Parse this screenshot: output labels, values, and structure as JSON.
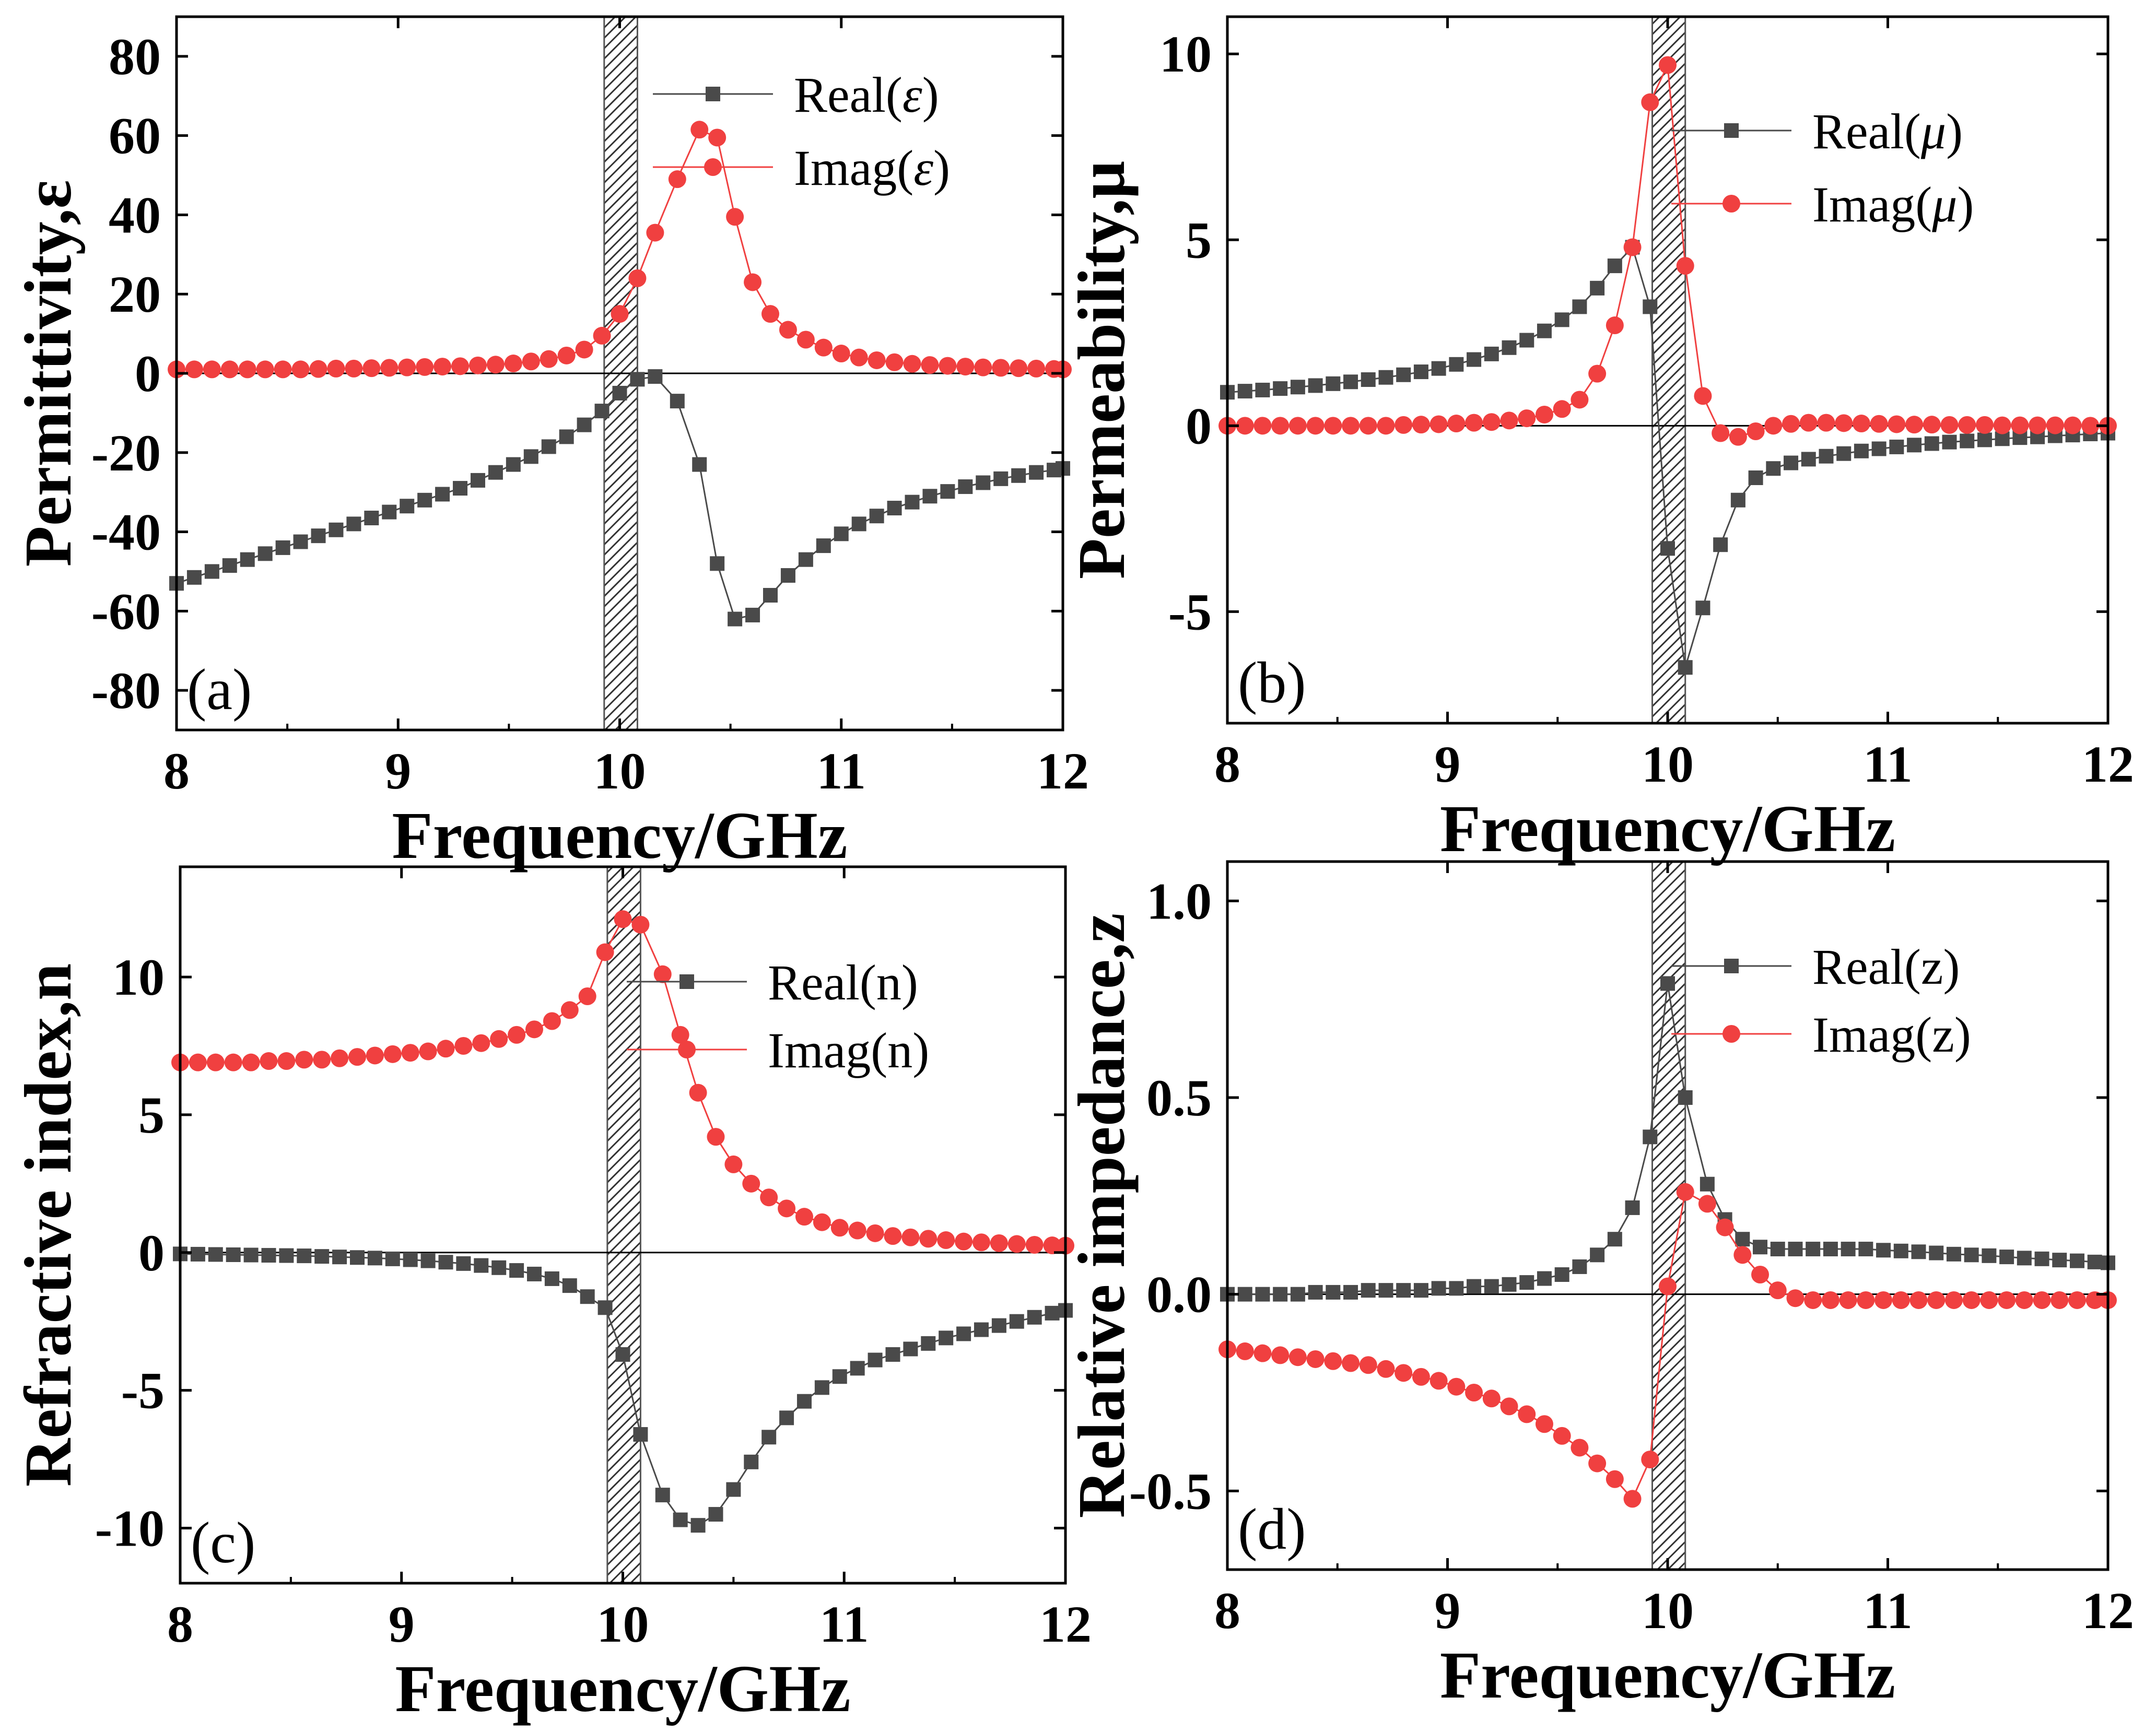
{
  "chart_data": [
    {
      "type": "line",
      "panel_label": "(a)",
      "xlabel": "Frequency/GHz",
      "ylabel": "Permittivity,ε",
      "xlim": [
        8,
        12
      ],
      "ylim": [
        -90,
        90
      ],
      "xticks": [
        8,
        9,
        10,
        11,
        12
      ],
      "yticks": [
        80,
        60,
        40,
        20,
        0,
        -20,
        -40,
        -60,
        -80
      ],
      "shaded_band": [
        9.93,
        10.08
      ],
      "legend_position": "top-right",
      "series": [
        {
          "name": "Real",
          "legend": [
            "Real(",
            "ε",
            ")"
          ],
          "color": "#4a4a4a",
          "marker": "square",
          "x": [
            8.0,
            8.08,
            8.16,
            8.24,
            8.32,
            8.4,
            8.48,
            8.56,
            8.64,
            8.72,
            8.8,
            8.88,
            8.96,
            9.04,
            9.12,
            9.2,
            9.28,
            9.36,
            9.44,
            9.52,
            9.6,
            9.68,
            9.76,
            9.84,
            9.92,
            10.0,
            10.08,
            10.16,
            10.26,
            10.36,
            10.44,
            10.52,
            10.6,
            10.68,
            10.76,
            10.84,
            10.92,
            11.0,
            11.08,
            11.16,
            11.24,
            11.32,
            11.4,
            11.48,
            11.56,
            11.64,
            11.72,
            11.8,
            11.88,
            11.96,
            12.0
          ],
          "values": [
            -53,
            -51.5,
            -50,
            -48.5,
            -47,
            -45.5,
            -44,
            -42.5,
            -41,
            -39.5,
            -38,
            -36.5,
            -35,
            -33.5,
            -32,
            -30.5,
            -29,
            -27,
            -25,
            -23,
            -21,
            -18.5,
            -16,
            -13,
            -9.5,
            -5,
            -1.5,
            -0.8,
            -7,
            -23,
            -48,
            -62,
            -61,
            -56,
            -51,
            -47,
            -43.5,
            -40.5,
            -38,
            -36,
            -34,
            -32.5,
            -31,
            -29.8,
            -28.6,
            -27.6,
            -26.6,
            -25.8,
            -25,
            -24.4,
            -24
          ]
        },
        {
          "name": "Imag",
          "legend": [
            "Imag(",
            "ε",
            ")"
          ],
          "color": "#f04040",
          "marker": "circle",
          "x": [
            8.0,
            8.08,
            8.16,
            8.24,
            8.32,
            8.4,
            8.48,
            8.56,
            8.64,
            8.72,
            8.8,
            8.88,
            8.96,
            9.04,
            9.12,
            9.2,
            9.28,
            9.36,
            9.44,
            9.52,
            9.6,
            9.68,
            9.76,
            9.84,
            9.92,
            10.0,
            10.08,
            10.16,
            10.26,
            10.36,
            10.44,
            10.52,
            10.6,
            10.68,
            10.76,
            10.84,
            10.92,
            11.0,
            11.08,
            11.16,
            11.24,
            11.32,
            11.4,
            11.48,
            11.56,
            11.64,
            11.72,
            11.8,
            11.88,
            11.96,
            12.0
          ],
          "values": [
            1,
            1,
            1,
            1,
            1,
            1,
            1,
            1,
            1.1,
            1.2,
            1.2,
            1.3,
            1.4,
            1.5,
            1.6,
            1.7,
            1.8,
            2,
            2.2,
            2.5,
            3,
            3.6,
            4.5,
            6,
            9.5,
            15,
            24,
            35.5,
            49,
            61.5,
            59.5,
            39.5,
            23,
            15,
            11,
            8.5,
            6.5,
            5,
            4,
            3.3,
            2.8,
            2.4,
            2.1,
            1.9,
            1.7,
            1.5,
            1.4,
            1.3,
            1.2,
            1.1,
            1
          ]
        }
      ]
    },
    {
      "type": "line",
      "panel_label": "(b)",
      "xlabel": "Frequency/GHz",
      "ylabel": "Permeability,μ",
      "xlim": [
        8,
        12
      ],
      "ylim": [
        -8,
        11
      ],
      "xticks": [
        8,
        9,
        10,
        11,
        12
      ],
      "yticks": [
        10,
        5,
        0,
        -5
      ],
      "ytick_labels": [
        "10",
        "5",
        "0",
        "-5"
      ],
      "shaded_band": [
        9.93,
        10.08
      ],
      "legend_position": "top-right",
      "series": [
        {
          "name": "Real",
          "legend": [
            "Real(",
            "μ",
            ")"
          ],
          "color": "#4a4a4a",
          "marker": "square",
          "x": [
            8.0,
            8.08,
            8.16,
            8.24,
            8.32,
            8.4,
            8.48,
            8.56,
            8.64,
            8.72,
            8.8,
            8.88,
            8.96,
            9.04,
            9.12,
            9.2,
            9.28,
            9.36,
            9.44,
            9.52,
            9.6,
            9.68,
            9.76,
            9.84,
            9.92,
            10.0,
            10.08,
            10.16,
            10.24,
            10.32,
            10.4,
            10.48,
            10.56,
            10.64,
            10.72,
            10.8,
            10.88,
            10.96,
            11.04,
            11.12,
            11.2,
            11.28,
            11.36,
            11.44,
            11.52,
            11.6,
            11.68,
            11.76,
            11.84,
            11.92,
            12.0
          ],
          "values": [
            0.9,
            0.93,
            0.96,
            1.0,
            1.04,
            1.08,
            1.13,
            1.18,
            1.24,
            1.3,
            1.37,
            1.45,
            1.54,
            1.65,
            1.78,
            1.93,
            2.1,
            2.3,
            2.55,
            2.85,
            3.2,
            3.7,
            4.3,
            4.8,
            3.2,
            -3.3,
            -6.5,
            -4.9,
            -3.2,
            -2.0,
            -1.4,
            -1.15,
            -1.0,
            -0.9,
            -0.82,
            -0.75,
            -0.68,
            -0.62,
            -0.57,
            -0.52,
            -0.48,
            -0.44,
            -0.41,
            -0.38,
            -0.35,
            -0.32,
            -0.3,
            -0.27,
            -0.25,
            -0.22,
            -0.2
          ]
        },
        {
          "name": "Imag",
          "legend": [
            "Imag(",
            "μ",
            ")"
          ],
          "color": "#f04040",
          "marker": "circle",
          "x": [
            8.0,
            8.08,
            8.16,
            8.24,
            8.32,
            8.4,
            8.48,
            8.56,
            8.64,
            8.72,
            8.8,
            8.88,
            8.96,
            9.04,
            9.12,
            9.2,
            9.28,
            9.36,
            9.44,
            9.52,
            9.6,
            9.68,
            9.76,
            9.84,
            9.92,
            10.0,
            10.08,
            10.16,
            10.24,
            10.32,
            10.4,
            10.48,
            10.56,
            10.64,
            10.72,
            10.8,
            10.88,
            10.96,
            11.04,
            11.12,
            11.2,
            11.28,
            11.36,
            11.44,
            11.52,
            11.6,
            11.68,
            11.76,
            11.84,
            11.92,
            12.0
          ],
          "values": [
            0,
            0,
            0,
            0,
            0,
            0,
            0,
            0,
            0,
            0,
            0.02,
            0.03,
            0.04,
            0.06,
            0.08,
            0.1,
            0.14,
            0.2,
            0.3,
            0.45,
            0.7,
            1.4,
            2.7,
            4.8,
            8.7,
            9.7,
            4.3,
            0.8,
            -0.2,
            -0.3,
            -0.15,
            0,
            0.05,
            0.08,
            0.08,
            0.07,
            0.06,
            0.05,
            0.04,
            0.03,
            0.03,
            0.02,
            0.02,
            0.02,
            0.01,
            0.01,
            0.01,
            0.01,
            0.01,
            0,
            0
          ]
        }
      ]
    },
    {
      "type": "line",
      "panel_label": "(c)",
      "xlabel": "Frequency/GHz",
      "ylabel": "Refractive index,n",
      "xlim": [
        8,
        12
      ],
      "ylim": [
        -12,
        14
      ],
      "xticks": [
        8,
        9,
        10,
        11,
        12
      ],
      "yticks": [
        10,
        5,
        0,
        -5,
        -10
      ],
      "shaded_band": [
        9.93,
        10.08
      ],
      "legend_position": "top-right",
      "series": [
        {
          "name": "Real",
          "legend": [
            "Real(n)"
          ],
          "color": "#4a4a4a",
          "marker": "square",
          "x": [
            8.0,
            8.08,
            8.16,
            8.24,
            8.32,
            8.4,
            8.48,
            8.56,
            8.64,
            8.72,
            8.8,
            8.88,
            8.96,
            9.04,
            9.12,
            9.2,
            9.28,
            9.36,
            9.44,
            9.52,
            9.6,
            9.68,
            9.76,
            9.84,
            9.92,
            10.0,
            10.08,
            10.18,
            10.26,
            10.34,
            10.42,
            10.5,
            10.58,
            10.66,
            10.74,
            10.82,
            10.9,
            10.98,
            11.06,
            11.14,
            11.22,
            11.3,
            11.38,
            11.46,
            11.54,
            11.62,
            11.7,
            11.78,
            11.86,
            11.94,
            12.0
          ],
          "values": [
            -0.05,
            -0.06,
            -0.07,
            -0.08,
            -0.09,
            -0.1,
            -0.11,
            -0.12,
            -0.14,
            -0.16,
            -0.18,
            -0.2,
            -0.23,
            -0.26,
            -0.3,
            -0.35,
            -0.4,
            -0.47,
            -0.55,
            -0.65,
            -0.78,
            -0.95,
            -1.2,
            -1.6,
            -2.0,
            -3.7,
            -6.6,
            -8.8,
            -9.7,
            -9.9,
            -9.5,
            -8.6,
            -7.6,
            -6.7,
            -6.0,
            -5.4,
            -4.9,
            -4.5,
            -4.2,
            -3.9,
            -3.7,
            -3.5,
            -3.3,
            -3.1,
            -2.95,
            -2.8,
            -2.65,
            -2.5,
            -2.35,
            -2.2,
            -2.1
          ]
        },
        {
          "name": "Imag",
          "legend": [
            "Imag(n)"
          ],
          "color": "#f04040",
          "marker": "circle",
          "x": [
            8.0,
            8.08,
            8.16,
            8.24,
            8.32,
            8.4,
            8.48,
            8.56,
            8.64,
            8.72,
            8.8,
            8.88,
            8.96,
            9.04,
            9.12,
            9.2,
            9.28,
            9.36,
            9.44,
            9.52,
            9.6,
            9.68,
            9.76,
            9.84,
            9.92,
            10.0,
            10.08,
            10.18,
            10.26,
            10.34,
            10.42,
            10.5,
            10.58,
            10.66,
            10.74,
            10.82,
            10.9,
            10.98,
            11.06,
            11.14,
            11.22,
            11.3,
            11.38,
            11.46,
            11.54,
            11.62,
            11.7,
            11.78,
            11.86,
            11.94,
            12.0
          ],
          "values": [
            6.9,
            6.9,
            6.9,
            6.9,
            6.9,
            6.95,
            6.95,
            7.0,
            7.0,
            7.05,
            7.1,
            7.15,
            7.2,
            7.25,
            7.3,
            7.4,
            7.5,
            7.6,
            7.75,
            7.9,
            8.1,
            8.4,
            8.8,
            9.3,
            10.9,
            12.1,
            11.9,
            10.1,
            7.9,
            5.8,
            4.2,
            3.2,
            2.5,
            2.0,
            1.6,
            1.3,
            1.1,
            0.9,
            0.8,
            0.7,
            0.6,
            0.55,
            0.5,
            0.45,
            0.4,
            0.37,
            0.34,
            0.31,
            0.28,
            0.26,
            0.25
          ]
        }
      ]
    },
    {
      "type": "line",
      "panel_label": "(d)",
      "xlabel": "Frequency/GHz",
      "ylabel": "Relative impedance,z",
      "xlim": [
        8,
        12
      ],
      "ylim": [
        -0.7,
        1.1
      ],
      "xticks": [
        8,
        9,
        10,
        11,
        12
      ],
      "yticks": [
        1.0,
        0.5,
        0.0,
        -0.5
      ],
      "ytick_labels": [
        "1.0",
        "0.5",
        "0.0",
        "-0.5"
      ],
      "shaded_band": [
        9.93,
        10.08
      ],
      "legend_position": "top-right",
      "series": [
        {
          "name": "Real",
          "legend": [
            "Real(z)"
          ],
          "color": "#4a4a4a",
          "marker": "square",
          "x": [
            8.0,
            8.08,
            8.16,
            8.24,
            8.32,
            8.4,
            8.48,
            8.56,
            8.64,
            8.72,
            8.8,
            8.88,
            8.96,
            9.04,
            9.12,
            9.2,
            9.28,
            9.36,
            9.44,
            9.52,
            9.6,
            9.68,
            9.76,
            9.84,
            9.92,
            10.0,
            10.08,
            10.18,
            10.26,
            10.34,
            10.42,
            10.5,
            10.58,
            10.66,
            10.74,
            10.82,
            10.9,
            10.98,
            11.06,
            11.14,
            11.22,
            11.3,
            11.38,
            11.46,
            11.54,
            11.62,
            11.7,
            11.78,
            11.86,
            11.94,
            12.0
          ],
          "values": [
            0.0,
            0.0,
            0.0,
            0.0,
            0.0,
            0.005,
            0.005,
            0.005,
            0.01,
            0.01,
            0.01,
            0.01,
            0.015,
            0.015,
            0.02,
            0.02,
            0.025,
            0.03,
            0.04,
            0.05,
            0.07,
            0.1,
            0.14,
            0.22,
            0.4,
            0.79,
            0.5,
            0.28,
            0.19,
            0.14,
            0.12,
            0.115,
            0.115,
            0.115,
            0.115,
            0.115,
            0.115,
            0.112,
            0.11,
            0.108,
            0.105,
            0.102,
            0.1,
            0.098,
            0.095,
            0.092,
            0.09,
            0.087,
            0.085,
            0.082,
            0.08
          ]
        },
        {
          "name": "Imag",
          "legend": [
            "Imag(z)"
          ],
          "color": "#f04040",
          "marker": "circle",
          "x": [
            8.0,
            8.08,
            8.16,
            8.24,
            8.32,
            8.4,
            8.48,
            8.56,
            8.64,
            8.72,
            8.8,
            8.88,
            8.96,
            9.04,
            9.12,
            9.2,
            9.28,
            9.36,
            9.44,
            9.52,
            9.6,
            9.68,
            9.76,
            9.84,
            9.92,
            10.0,
            10.08,
            10.18,
            10.26,
            10.34,
            10.42,
            10.5,
            10.58,
            10.66,
            10.74,
            10.82,
            10.9,
            10.98,
            11.06,
            11.14,
            11.22,
            11.3,
            11.38,
            11.46,
            11.54,
            11.62,
            11.7,
            11.78,
            11.86,
            11.94,
            12.0
          ],
          "values": [
            -0.14,
            -0.145,
            -0.15,
            -0.155,
            -0.16,
            -0.165,
            -0.17,
            -0.175,
            -0.18,
            -0.19,
            -0.2,
            -0.21,
            -0.22,
            -0.235,
            -0.25,
            -0.265,
            -0.285,
            -0.305,
            -0.33,
            -0.36,
            -0.39,
            -0.43,
            -0.47,
            -0.52,
            -0.42,
            0.02,
            0.26,
            0.23,
            0.17,
            0.1,
            0.05,
            0.01,
            -0.01,
            -0.015,
            -0.015,
            -0.015,
            -0.015,
            -0.015,
            -0.015,
            -0.015,
            -0.015,
            -0.015,
            -0.015,
            -0.015,
            -0.015,
            -0.015,
            -0.015,
            -0.015,
            -0.015,
            -0.015,
            -0.015
          ]
        }
      ]
    }
  ]
}
